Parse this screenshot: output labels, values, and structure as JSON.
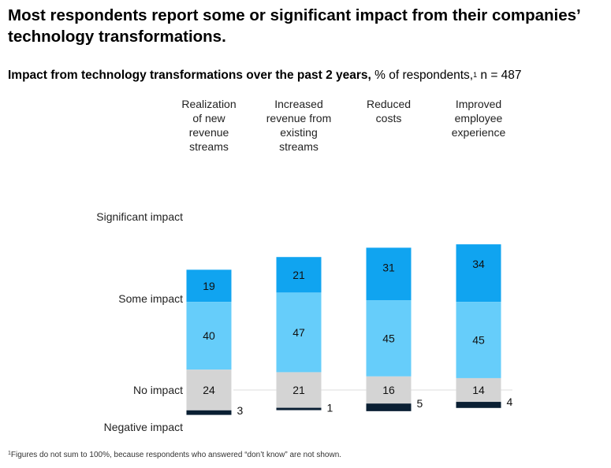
{
  "title": "Most respondents report some or significant impact from their companies’ technology transformations.",
  "subtitle": {
    "bold": "Impact from technology transformations over the past 2 years,",
    "normal": " % of respondents,",
    "sup": "1",
    "tail": " n = 487"
  },
  "footnote": {
    "sup": "1",
    "text": "Figures do not sum to 100%, because respondents who answered “don’t know” are not shown."
  },
  "colors": {
    "significant": "#10a4f0",
    "some": "#66cdfa",
    "none": "#d4d4d4",
    "negative": "#0a1f33",
    "gridline": "#dcdcdc"
  },
  "chart_data": {
    "type": "bar",
    "stacked": true,
    "categories": [
      [
        "Realization",
        "of new",
        "revenue",
        "streams"
      ],
      [
        "Increased",
        "revenue from",
        "existing",
        "streams"
      ],
      [
        "Reduced",
        "costs"
      ],
      [
        "Improved",
        "employee",
        "experience"
      ]
    ],
    "series": [
      {
        "name": "Significant impact",
        "values": [
          19,
          21,
          31,
          34
        ]
      },
      {
        "name": "Some impact",
        "values": [
          40,
          47,
          45,
          45
        ]
      },
      {
        "name": "No impact",
        "values": [
          24,
          21,
          16,
          14
        ]
      },
      {
        "name": "Negative impact",
        "values": [
          3,
          1,
          5,
          4
        ]
      }
    ],
    "baseline_series": "No impact"
  }
}
